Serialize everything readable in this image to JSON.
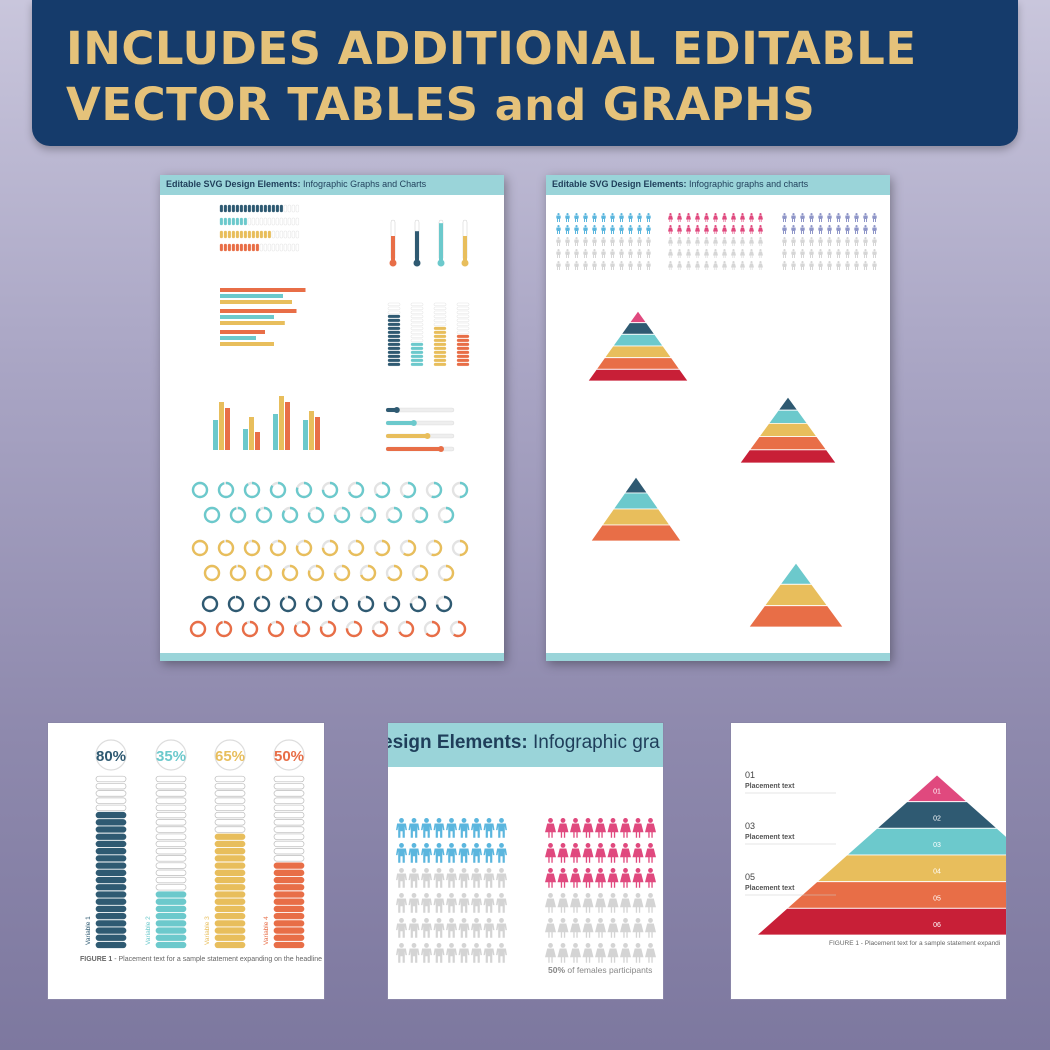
{
  "banner": {
    "line1": "INCLUDES ADDITIONAL EDITABLE",
    "line2_a": "VECTOR TABLES ",
    "line2_and": "and",
    "line2_b": " GRAPHS"
  },
  "colors": {
    "navy": "#153b6b",
    "gold": "#e5c27a",
    "teal": "#6cc9cc",
    "dark_teal": "#2f5a72",
    "yellow": "#e8be5c",
    "orange": "#e86e47",
    "pink": "#e0497e",
    "red": "#c81f37",
    "blue": "#5bb6de",
    "lavender": "#8f96c8",
    "grey": "#cccccc"
  },
  "page_left": {
    "title_bold": "Editable SVG Design Elements:",
    "title_rest": " Infographic Graphs and Charts"
  },
  "page_right": {
    "title_bold": "Editable SVG Design Elements:",
    "title_rest": " Infographic graphs and charts"
  },
  "card_bars": {
    "percent_labels": [
      "80%",
      "35%",
      "65%",
      "50%"
    ],
    "variable_labels": [
      "Variable 1",
      "Variable 2",
      "Variable 3",
      "Variable 4"
    ],
    "values": [
      0.8,
      0.35,
      0.65,
      0.5
    ],
    "caption_bold": "FIGURE 1",
    "caption_rest": " - Placement text for a sample statement expanding on the headline"
  },
  "card_people": {
    "title_bold": "esign Elements:",
    "title_rest": " Infographic gra",
    "caption_bold": "50%",
    "caption_rest": " of females  participants"
  },
  "card_pyramid": {
    "labels": [
      {
        "num": "01",
        "text": "Placement text"
      },
      {
        "num": "03",
        "text": "Placement text"
      },
      {
        "num": "05",
        "text": "Placement text"
      }
    ],
    "levels": [
      "01",
      "02",
      "03",
      "04",
      "05",
      "06"
    ],
    "caption": "FIGURE 1 - Placement text for a sample statement expandi"
  }
}
